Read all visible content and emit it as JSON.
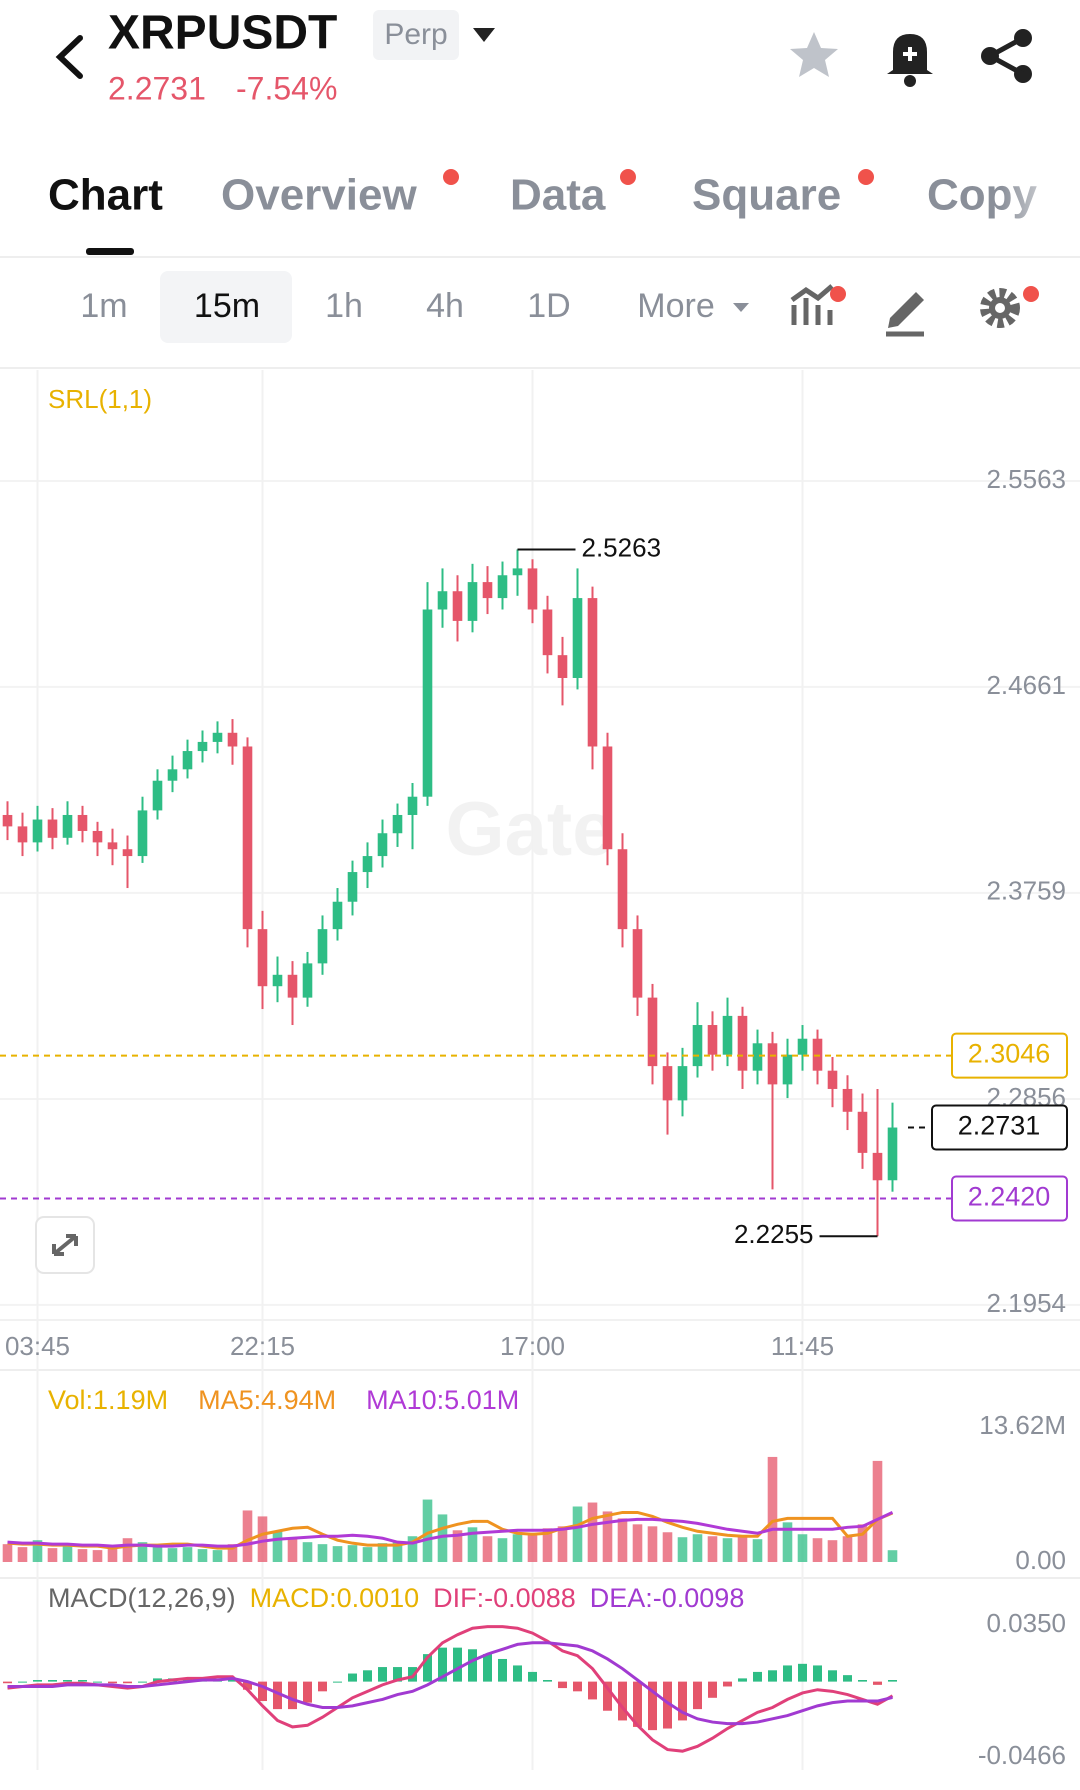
{
  "header": {
    "symbol": "XRPUSDT",
    "badge": "Perp",
    "price": "2.2731",
    "change": "-7.54%"
  },
  "tabs": [
    "Chart",
    "Overview",
    "Data",
    "Square",
    "Copy"
  ],
  "intervals": [
    "1m",
    "15m",
    "1h",
    "4h",
    "1D",
    "More"
  ],
  "chart_data": [
    {
      "type": "candlestick",
      "indicator": "SRL(1,1)",
      "watermark": "Gate",
      "categories": [
        null,
        null,
        "03:45",
        null,
        null,
        null,
        null,
        null,
        null,
        null,
        null,
        null,
        null,
        null,
        null,
        null,
        null,
        "22:15",
        null,
        null,
        null,
        null,
        null,
        null,
        null,
        null,
        null,
        null,
        null,
        null,
        null,
        null,
        null,
        null,
        null,
        "17:00",
        null,
        null,
        null,
        null,
        null,
        null,
        null,
        null,
        null,
        null,
        null,
        null,
        null,
        null,
        null,
        null,
        null,
        "11:45",
        null,
        null,
        null,
        null,
        null,
        null
      ],
      "ohlc": [
        [
          2.41,
          2.416,
          2.399,
          2.405
        ],
        [
          2.405,
          2.411,
          2.392,
          2.398
        ],
        [
          2.398,
          2.414,
          2.394,
          2.408
        ],
        [
          2.408,
          2.413,
          2.395,
          2.4
        ],
        [
          2.4,
          2.416,
          2.397,
          2.41
        ],
        [
          2.41,
          2.414,
          2.398,
          2.403
        ],
        [
          2.403,
          2.407,
          2.392,
          2.398
        ],
        [
          2.398,
          2.404,
          2.388,
          2.395
        ],
        [
          2.395,
          2.401,
          2.378,
          2.392
        ],
        [
          2.392,
          2.418,
          2.389,
          2.412
        ],
        [
          2.412,
          2.43,
          2.408,
          2.425
        ],
        [
          2.425,
          2.436,
          2.42,
          2.43
        ],
        [
          2.43,
          2.443,
          2.426,
          2.438
        ],
        [
          2.438,
          2.447,
          2.433,
          2.442
        ],
        [
          2.442,
          2.451,
          2.437,
          2.446
        ],
        [
          2.446,
          2.452,
          2.432,
          2.44
        ],
        [
          2.44,
          2.444,
          2.352,
          2.36
        ],
        [
          2.36,
          2.368,
          2.325,
          2.335
        ],
        [
          2.335,
          2.348,
          2.328,
          2.34
        ],
        [
          2.34,
          2.346,
          2.318,
          2.33
        ],
        [
          2.33,
          2.35,
          2.326,
          2.345
        ],
        [
          2.345,
          2.366,
          2.34,
          2.36
        ],
        [
          2.36,
          2.378,
          2.355,
          2.372
        ],
        [
          2.372,
          2.39,
          2.366,
          2.385
        ],
        [
          2.385,
          2.398,
          2.378,
          2.392
        ],
        [
          2.392,
          2.408,
          2.387,
          2.402
        ],
        [
          2.402,
          2.415,
          2.396,
          2.41
        ],
        [
          2.41,
          2.424,
          2.395,
          2.418
        ],
        [
          2.418,
          2.512,
          2.414,
          2.5
        ],
        [
          2.5,
          2.518,
          2.492,
          2.508
        ],
        [
          2.508,
          2.515,
          2.486,
          2.495
        ],
        [
          2.495,
          2.52,
          2.49,
          2.512
        ],
        [
          2.512,
          2.519,
          2.498,
          2.505
        ],
        [
          2.505,
          2.521,
          2.5,
          2.515
        ],
        [
          2.515,
          2.5263,
          2.506,
          2.518
        ],
        [
          2.518,
          2.522,
          2.494,
          2.5
        ],
        [
          2.5,
          2.506,
          2.472,
          2.48
        ],
        [
          2.48,
          2.488,
          2.458,
          2.47
        ],
        [
          2.47,
          2.518,
          2.465,
          2.505
        ],
        [
          2.505,
          2.51,
          2.43,
          2.44
        ],
        [
          2.44,
          2.446,
          2.388,
          2.395
        ],
        [
          2.395,
          2.402,
          2.352,
          2.36
        ],
        [
          2.36,
          2.366,
          2.322,
          2.33
        ],
        [
          2.33,
          2.336,
          2.292,
          2.3
        ],
        [
          2.3,
          2.306,
          2.27,
          2.285
        ],
        [
          2.285,
          2.308,
          2.278,
          2.3
        ],
        [
          2.3,
          2.328,
          2.295,
          2.318
        ],
        [
          2.318,
          2.324,
          2.298,
          2.305
        ],
        [
          2.305,
          2.33,
          2.3,
          2.322
        ],
        [
          2.322,
          2.326,
          2.29,
          2.298
        ],
        [
          2.298,
          2.316,
          2.292,
          2.31
        ],
        [
          2.31,
          2.315,
          2.246,
          2.292
        ],
        [
          2.292,
          2.312,
          2.286,
          2.305
        ],
        [
          2.305,
          2.318,
          2.298,
          2.312
        ],
        [
          2.312,
          2.316,
          2.292,
          2.298
        ],
        [
          2.298,
          2.304,
          2.282,
          2.29
        ],
        [
          2.29,
          2.296,
          2.272,
          2.28
        ],
        [
          2.28,
          2.288,
          2.255,
          2.262
        ],
        [
          2.262,
          2.29,
          2.2255,
          2.25
        ],
        [
          2.25,
          2.284,
          2.245,
          2.2731
        ]
      ],
      "ylim": [
        2.1888,
        2.6049
      ],
      "yticks": [
        2.5563,
        2.4661,
        2.3759,
        2.2856,
        2.1954
      ],
      "grid": true,
      "colors": {
        "up": "#2ebd85",
        "down": "#e5566a"
      },
      "high_label": 2.5263,
      "low_label": 2.2255,
      "price_lines": [
        {
          "value": 2.3046,
          "color": "#e8b200",
          "line": "full"
        },
        {
          "value": 2.242,
          "label": "2.2420",
          "color": "#a13ad1",
          "line": "full"
        },
        {
          "value": 2.2731,
          "color": "#111111",
          "line": "stub"
        }
      ]
    },
    {
      "type": "volume",
      "ylim": [
        0,
        13.62
      ],
      "yticks": [
        {
          "value": 13.62,
          "label": "13.62M"
        },
        {
          "value": 0,
          "label": "0.00"
        }
      ],
      "series": [
        {
          "name": "Vol:1.19M",
          "color": "#e8b200",
          "values": [
            1.8,
            1.5,
            2.2,
            1.4,
            1.6,
            1.3,
            1.2,
            1.5,
            2.4,
            2.0,
            1.6,
            1.4,
            1.5,
            1.3,
            1.2,
            1.8,
            5.2,
            4.6,
            3.1,
            2.4,
            2.0,
            1.8,
            1.6,
            1.7,
            1.5,
            1.9,
            2.1,
            2.6,
            6.3,
            4.8,
            3.2,
            3.5,
            2.6,
            2.4,
            2.8,
            2.9,
            3.4,
            3.6,
            5.6,
            6.0,
            5.1,
            4.4,
            3.8,
            3.6,
            3.0,
            2.5,
            2.8,
            2.6,
            2.4,
            2.7,
            2.3,
            10.6,
            4.0,
            2.8,
            2.4,
            2.2,
            2.6,
            3.8,
            10.2,
            1.19
          ]
        },
        {
          "name": "MA5:4.94M",
          "color": "#ef9320",
          "values": [
            1.9,
            1.8,
            1.8,
            1.7,
            1.7,
            1.6,
            1.6,
            1.4,
            1.6,
            1.7,
            1.7,
            1.8,
            1.8,
            1.6,
            1.4,
            1.4,
            2.2,
            2.8,
            3.1,
            3.4,
            3.5,
            2.8,
            2.2,
            1.9,
            1.7,
            1.7,
            1.7,
            2.0,
            2.9,
            3.4,
            3.8,
            4.1,
            4.1,
            3.3,
            2.9,
            2.8,
            2.9,
            3.4,
            3.7,
            4.4,
            4.7,
            5.0,
            5.0,
            4.6,
            4.0,
            3.5,
            3.1,
            2.9,
            2.7,
            2.6,
            2.6,
            4.1,
            4.4,
            4.4,
            4.4,
            4.4,
            2.6,
            2.8,
            4.3,
            4.94
          ]
        },
        {
          "name": "MA10:5.01M",
          "color": "#b03ad6",
          "values": [
            2.0,
            1.9,
            1.9,
            1.8,
            1.8,
            1.7,
            1.7,
            1.6,
            1.7,
            1.7,
            1.6,
            1.6,
            1.7,
            1.7,
            1.6,
            1.6,
            1.8,
            2.1,
            2.3,
            2.4,
            2.5,
            2.6,
            2.6,
            2.7,
            2.6,
            2.4,
            2.0,
            1.9,
            2.3,
            2.6,
            2.7,
            2.9,
            3.0,
            3.1,
            3.2,
            3.2,
            3.2,
            3.3,
            3.5,
            3.8,
            4.0,
            4.2,
            4.3,
            4.3,
            4.2,
            4.1,
            3.9,
            3.6,
            3.3,
            3.1,
            2.9,
            3.3,
            3.3,
            3.3,
            3.3,
            3.3,
            3.5,
            3.6,
            4.3,
            5.01
          ]
        }
      ]
    },
    {
      "type": "macd",
      "title": "MACD(12,26,9)",
      "ylim": [
        -0.0466,
        0.035
      ],
      "yticks": [
        {
          "value": 0.035,
          "label": "0.0350"
        },
        -0.0466
      ],
      "series": [
        {
          "name": "MACD:0.0010",
          "color": "#e8b200",
          "values": [
            -0.001,
            0,
            0.001,
            0.001,
            0.001,
            0.001,
            0,
            -0.001,
            -0.001,
            0,
            0.002,
            0.002,
            0.002,
            0.001,
            0.002,
            0.001,
            -0.005,
            -0.012,
            -0.017,
            -0.017,
            -0.013,
            -0.006,
            0,
            0.005,
            0.007,
            0.009,
            0.009,
            0.009,
            0.017,
            0.021,
            0.021,
            0.02,
            0.017,
            0.014,
            0.01,
            0.006,
            0.001,
            -0.004,
            -0.006,
            -0.011,
            -0.018,
            -0.024,
            -0.028,
            -0.03,
            -0.029,
            -0.024,
            -0.017,
            -0.01,
            -0.003,
            0.002,
            0.006,
            0.007,
            0.01,
            0.011,
            0.01,
            0.007,
            0.004,
            0.001,
            -0.002,
            0.001
          ]
        },
        {
          "name": "DIF:-0.0088",
          "color": "#e0407a",
          "values": [
            -0.004,
            -0.003,
            -0.002,
            -0.002,
            -0.001,
            -0.001,
            -0.002,
            -0.003,
            -0.004,
            -0.003,
            0.0,
            0.001,
            0.002,
            0.002,
            0.003,
            0.003,
            -0.005,
            -0.015,
            -0.024,
            -0.028,
            -0.027,
            -0.022,
            -0.016,
            -0.01,
            -0.006,
            -0.002,
            0.001,
            0.003,
            0.015,
            0.024,
            0.029,
            0.033,
            0.034,
            0.034,
            0.033,
            0.03,
            0.025,
            0.019,
            0.016,
            0.008,
            -0.004,
            -0.016,
            -0.027,
            -0.036,
            -0.042,
            -0.043,
            -0.04,
            -0.035,
            -0.029,
            -0.024,
            -0.019,
            -0.016,
            -0.011,
            -0.007,
            -0.005,
            -0.006,
            -0.008,
            -0.011,
            -0.014,
            -0.0088
          ]
        },
        {
          "name": "DEA:-0.0098",
          "color": "#a13ad1",
          "values": [
            -0.003,
            -0.003,
            -0.003,
            -0.003,
            -0.002,
            -0.002,
            -0.002,
            -0.002,
            -0.003,
            -0.003,
            -0.002,
            -0.001,
            0.0,
            0.001,
            0.001,
            0.002,
            0.0,
            -0.003,
            -0.007,
            -0.011,
            -0.014,
            -0.016,
            -0.016,
            -0.015,
            -0.013,
            -0.011,
            -0.008,
            -0.006,
            -0.002,
            0.003,
            0.008,
            0.013,
            0.017,
            0.02,
            0.023,
            0.024,
            0.024,
            0.023,
            0.022,
            0.019,
            0.014,
            0.008,
            0.001,
            -0.006,
            -0.013,
            -0.019,
            -0.023,
            -0.025,
            -0.026,
            -0.026,
            -0.025,
            -0.023,
            -0.021,
            -0.018,
            -0.015,
            -0.013,
            -0.012,
            -0.012,
            -0.012,
            -0.0098
          ]
        }
      ]
    }
  ]
}
